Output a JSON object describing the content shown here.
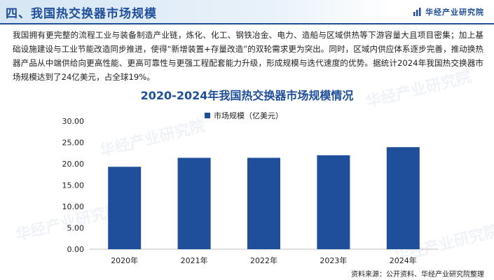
{
  "header": {
    "title": "四、我国热交换器市场规模",
    "brand": "华经产业研究院",
    "brand_icon": "bar-chart-logo-icon"
  },
  "paragraph": "我国拥有更完整的流程工业与装备制造产业链，炼化、化工、钢铁冶金、电力、造船与区域供热等下游容量大且项目密集；加上基础设施建设与工业节能改造同步推进，使得“新增装置+存量改造”的双轮需求更为突出。同时，区域内供应体系逐步完善，推动换热器产品从中端供给向更高性能、更高可靠性与更强工程配套能力升级，形成规模与迭代速度的优势。据统计2024年我国热交换器市场规模达到了24亿美元，占全球19%。",
  "watermark": "华经产业研究院",
  "source": "资料来源：公开资料、华经产业研究院整理",
  "colors": {
    "accent": "#1f4e9a",
    "bar": "#1f4e9a"
  },
  "chart_data": {
    "type": "bar",
    "title": "2020-2024年我国热交换器市场规模情况",
    "categories": [
      "2020年",
      "2021年",
      "2022年",
      "2023年",
      "2024年"
    ],
    "series": [
      {
        "name": "市场规模（亿美元）",
        "values": [
          19.3,
          21.4,
          21.4,
          22.0,
          23.9
        ]
      }
    ],
    "ylim": [
      0,
      30
    ],
    "yticks": [
      "0.00",
      "5.00",
      "10.00",
      "15.00",
      "20.00",
      "25.00",
      "30.00"
    ],
    "grid": false,
    "legend": "top-center"
  }
}
